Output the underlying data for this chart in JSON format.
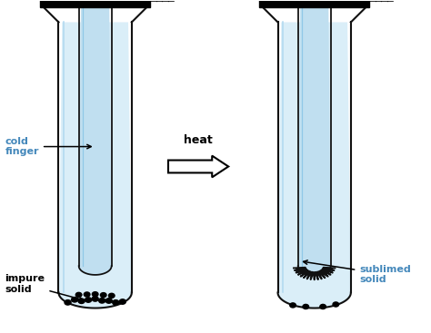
{
  "bg_color": "#ffffff",
  "cold_finger_label": "cold\nfinger",
  "impure_label": "impure\nsolid",
  "sublimed_label": "sublimed\nsolid",
  "heat_label": "heat",
  "label_color_cold": "#4488bb",
  "label_color_black": "#111111"
}
